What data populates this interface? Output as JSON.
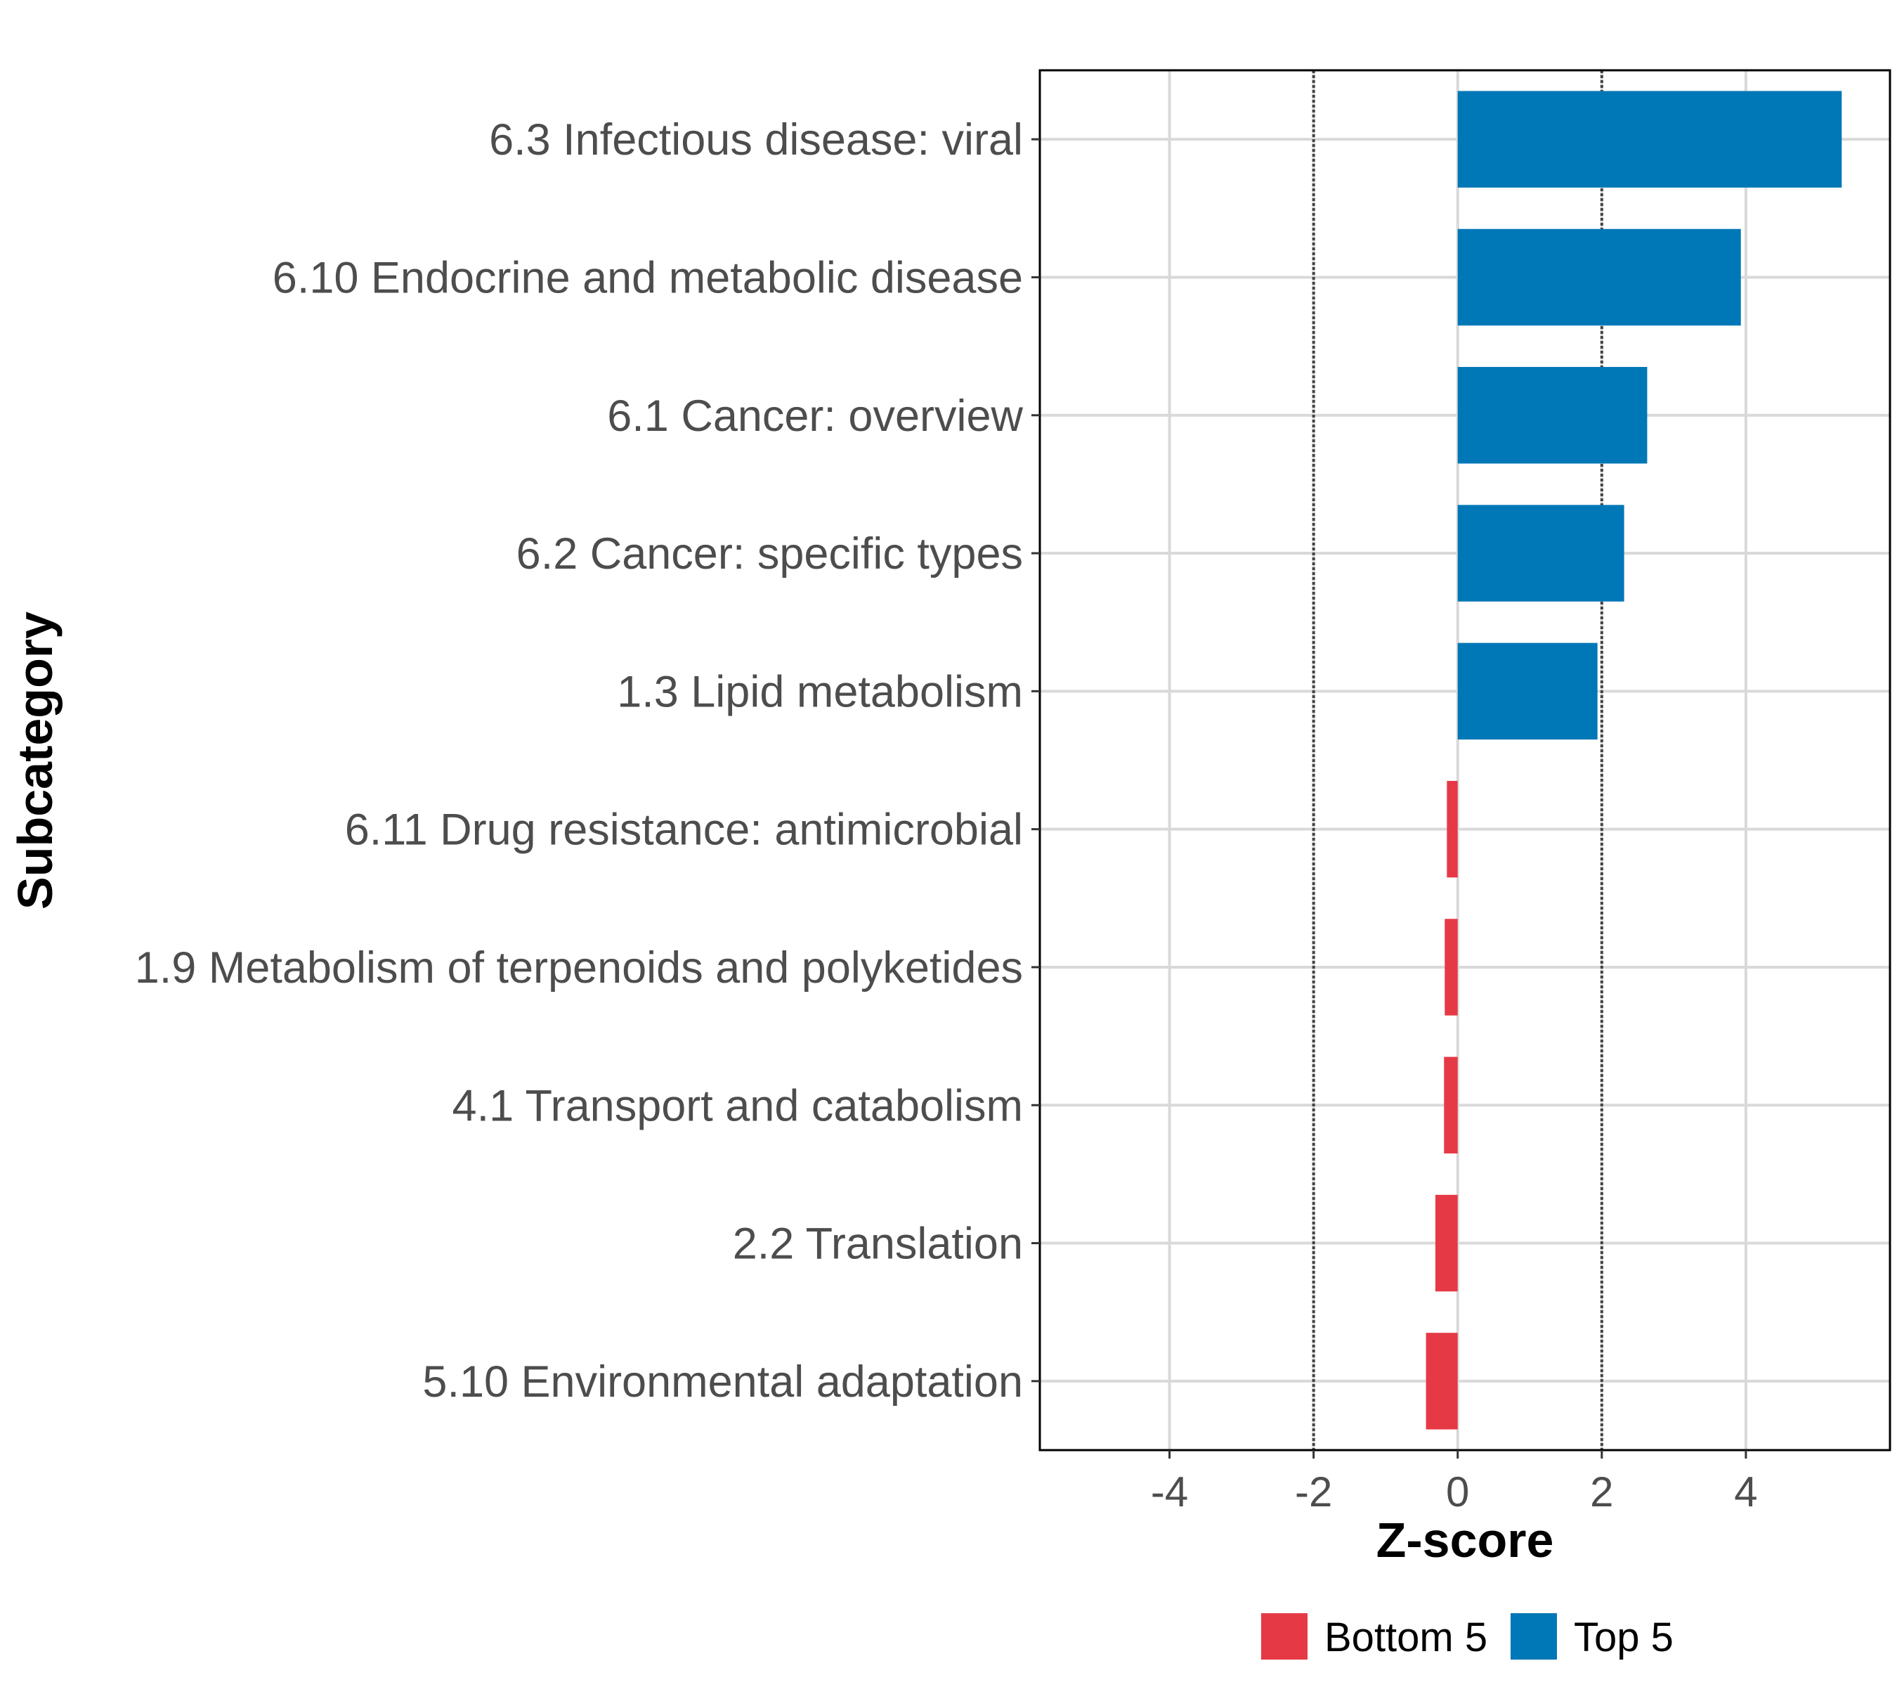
{
  "chart_data": {
    "type": "bar",
    "orientation": "horizontal",
    "title": "",
    "xlabel": "Z-score",
    "ylabel": "Subcategory",
    "xlim": [
      -5.8,
      6.0
    ],
    "xticks": [
      -4,
      -2,
      0,
      2,
      4
    ],
    "xtick_labels": [
      "-4",
      "-2",
      "0",
      "2",
      "4"
    ],
    "reference_lines": [
      -2,
      2
    ],
    "grid": true,
    "legend_position": "bottom",
    "categories": [
      "6.3 Infectious disease: viral",
      "6.10 Endocrine and metabolic disease",
      "6.1 Cancer: overview",
      "6.2 Cancer: specific types",
      "1.3 Lipid metabolism",
      "6.11 Drug resistance: antimicrobial",
      "1.9 Metabolism of terpenoids and polyketides",
      "4.1 Transport and catabolism",
      "2.2 Translation",
      "5.10 Environmental adaptation"
    ],
    "values": [
      5.33,
      3.93,
      2.63,
      2.31,
      1.94,
      -0.15,
      -0.18,
      -0.19,
      -0.31,
      -0.44
    ],
    "groups": [
      "Top 5",
      "Top 5",
      "Top 5",
      "Top 5",
      "Top 5",
      "Bottom 5",
      "Bottom 5",
      "Bottom 5",
      "Bottom 5",
      "Bottom 5"
    ],
    "legend": [
      {
        "name": "Bottom 5",
        "color": "#e63946"
      },
      {
        "name": "Top 5",
        "color": "#0077b6"
      }
    ]
  }
}
